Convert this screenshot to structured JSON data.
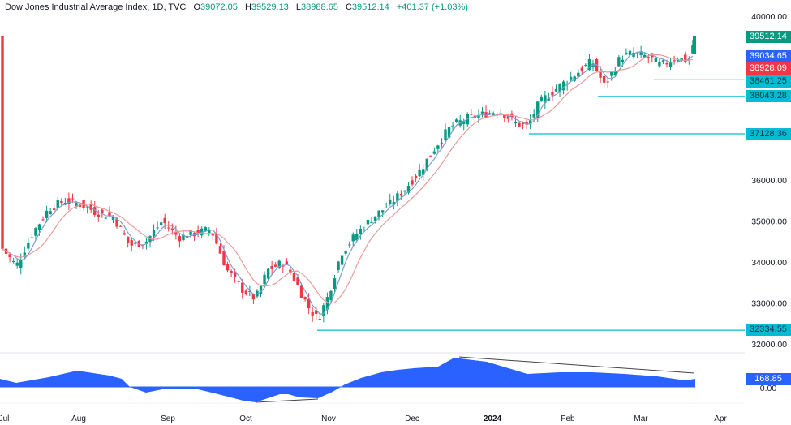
{
  "header": {
    "symbol": "Dow Jones Industrial Average Index, 1D, TVC",
    "open_label": "O",
    "open": "39072.05",
    "high_label": "H",
    "high": "39529.13",
    "low_label": "L",
    "low": "38988.65",
    "close_label": "C",
    "close": "39512.14",
    "change": "+401.37 (+1.03%)"
  },
  "colors": {
    "up": "#089981",
    "down": "#f23645",
    "ma_fast": "#7e9cd0",
    "ma_slow": "#e89a9a",
    "level": "#00bcd4",
    "osc": "#2962ff",
    "last_price": "#089981",
    "ma_fast_tag": "#2962ff",
    "ma_slow_tag": "#f23645"
  },
  "price_axis": {
    "ticks": [
      "40000.00",
      "36000.00",
      "35000.00",
      "34000.00",
      "33000.00",
      "32000.00"
    ],
    "tick_values": [
      40000,
      36000,
      35000,
      34000,
      33000,
      32000
    ]
  },
  "price_tags": [
    {
      "value": "39512.14",
      "type": "last_price"
    },
    {
      "value": "39034.65",
      "type": "ma_fast"
    },
    {
      "value": "38928.09",
      "type": "ma_slow"
    },
    {
      "value": "38461.25",
      "type": "level"
    },
    {
      "value": "38043.28",
      "type": "level"
    },
    {
      "value": "37128.36",
      "type": "level"
    },
    {
      "value": "32334.55",
      "type": "level"
    }
  ],
  "oscillator": {
    "value": "168.85",
    "zero_label": "0.00"
  },
  "time_axis": [
    "Jul",
    "Aug",
    "Sep",
    "Oct",
    "Nov",
    "Dec",
    "2024",
    "Feb",
    "Mar",
    "Apr"
  ],
  "chart_data": {
    "type": "candlestick",
    "title": "Dow Jones Industrial Average Index, 1D, TVC",
    "x_labels": [
      "Jul",
      "Aug",
      "Sep",
      "Oct",
      "Nov",
      "Dec",
      "2024",
      "Feb",
      "Mar",
      "Apr"
    ],
    "y_range": [
      32000,
      40000
    ],
    "last_close": 39512.14,
    "horizontal_levels": [
      38461.25,
      38043.28,
      37128.36,
      32334.55
    ],
    "moving_averages": {
      "fast": 39034.65,
      "slow": 38928.09
    },
    "approx_close_path": [
      {
        "x": "Jul",
        "close": 34100
      },
      {
        "x": "Aug",
        "close": 35400
      },
      {
        "x": "Sep",
        "close": 34800
      },
      {
        "x": "Oct",
        "close": 33100
      },
      {
        "x": "late Oct",
        "close": 32400
      },
      {
        "x": "Nov",
        "close": 34000
      },
      {
        "x": "Dec",
        "close": 36200
      },
      {
        "x": "mid Dec",
        "close": 37300
      },
      {
        "x": "2024",
        "close": 37700
      },
      {
        "x": "Feb",
        "close": 38600
      },
      {
        "x": "late Feb",
        "close": 39100
      },
      {
        "x": "Mar",
        "close": 38900
      },
      {
        "x": "mid Mar",
        "close": 39512
      }
    ],
    "oscillator": {
      "last": 168.85,
      "zero": 0.0,
      "divergence_lines": 2
    }
  }
}
